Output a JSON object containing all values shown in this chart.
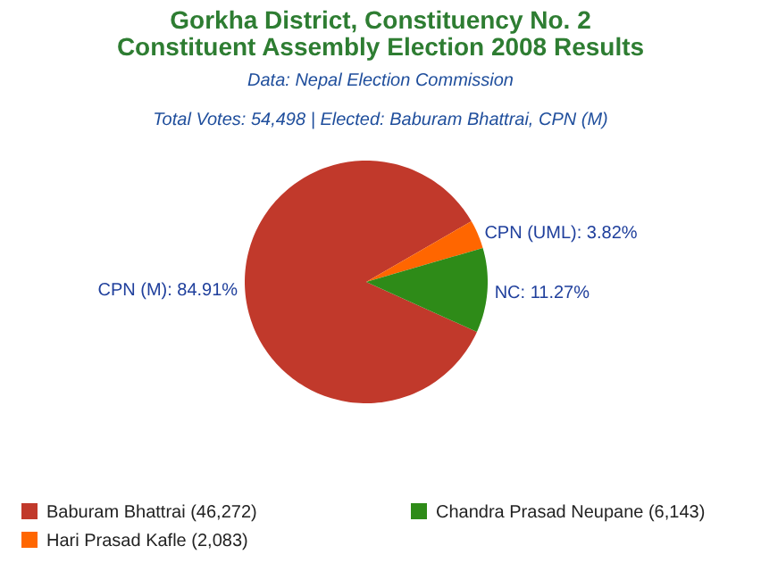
{
  "chart_data": {
    "type": "pie",
    "title": "Gorkha District, Constituency No. 2\nConstituent Assembly Election 2008 Results",
    "subtitle": "Data: Nepal Election Commission",
    "annotations": [
      "Total Votes: 54,498 | Elected: Baburam Bhattrai, CPN (M)"
    ],
    "categories": [
      "Baburam Bhattrai (46,272)",
      "Hari Prasad Kafle (2,083)",
      "Chandra Prasad Neupane (6,143)"
    ],
    "values": [
      84.91,
      3.82,
      11.27
    ],
    "value_labels": [
      "CPN (M): 84.91%",
      "CPN (UML): 3.82%",
      "NC: 11.27%"
    ],
    "colors": [
      "#c1392b",
      "#ff6600",
      "#2e8b18"
    ],
    "legend": "bottom"
  }
}
